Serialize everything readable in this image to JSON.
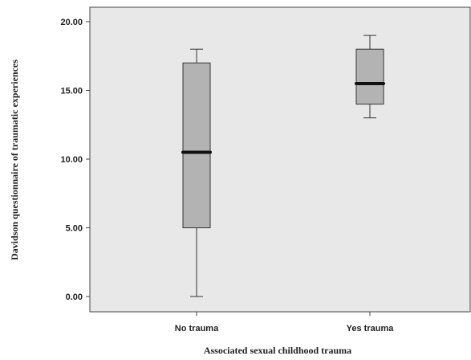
{
  "chart_data": {
    "type": "boxplot",
    "xlabel": "Associated sexual childhood trauma",
    "ylabel": "Davidson questionnaire of traumatic experiences",
    "ylim": [
      0,
      20
    ],
    "yticks": [
      "0.00",
      "5.00",
      "10.00",
      "15.00",
      "20.00"
    ],
    "categories": [
      "No trauma",
      "Yes trauma"
    ],
    "boxes": [
      {
        "category": "No trauma",
        "min": 0,
        "q1": 5,
        "median": 10.5,
        "q3": 17,
        "max": 18
      },
      {
        "category": "Yes trauma",
        "min": 13,
        "q1": 14,
        "median": 15.5,
        "q3": 18,
        "max": 19
      }
    ],
    "grid": false,
    "colors": {
      "plot_bg": "#e8e8e8",
      "box_fill": "#b3b3b3",
      "median": "#111111",
      "axis": "#444444"
    }
  }
}
